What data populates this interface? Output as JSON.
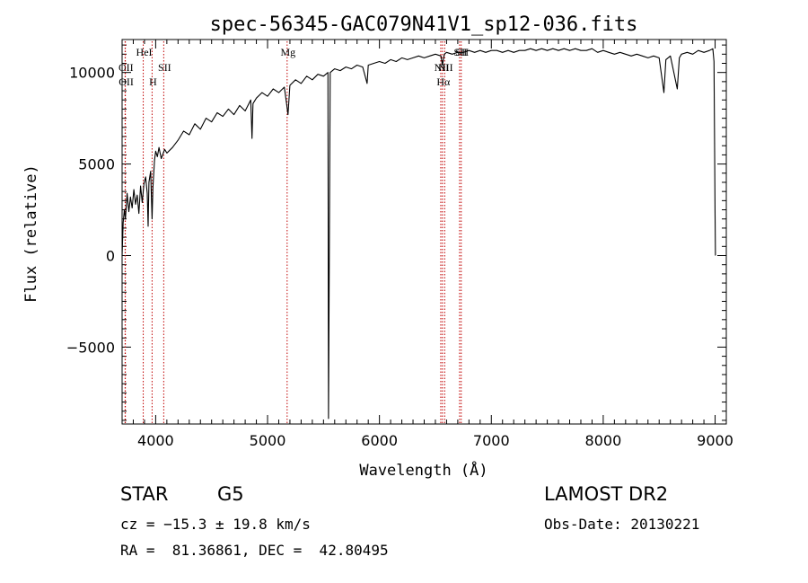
{
  "title": "spec-56345-GAC079N41V1_sp12-036.fits",
  "info": {
    "class_label": "STAR",
    "subclass": "G5",
    "survey": "LAMOST DR2",
    "redshift": "cz = −15.3 ± 19.8 km/s",
    "obs_date": "Obs-Date: 20130221",
    "coords": "RA =  81.36861, DEC =  42.80495"
  },
  "colors": {
    "spectrum": "#000000",
    "line_marker": "#c00000",
    "axes": "#000000"
  },
  "chart_data": {
    "type": "line",
    "title": "spec-56345-GAC079N41V1_sp12-036.fits",
    "xlabel": "Wavelength (Å)",
    "ylabel": "Flux (relative)",
    "xlim": [
      3700,
      9100
    ],
    "ylim": [
      -9200,
      11800
    ],
    "x_ticks": [
      4000,
      5000,
      6000,
      7000,
      8000,
      9000
    ],
    "x_tick_labels": [
      "4000",
      "5000",
      "6000",
      "7000",
      "8000",
      "9000"
    ],
    "y_ticks": [
      -5000,
      0,
      5000,
      10000
    ],
    "y_tick_labels": [
      "−5000",
      "0",
      "5000",
      "10000"
    ],
    "grid": false,
    "legend": "none",
    "series": [
      {
        "x": [
          3700,
          3710,
          3720,
          3730,
          3745,
          3760,
          3775,
          3790,
          3805,
          3820,
          3835,
          3850,
          3865,
          3880,
          3895,
          3910,
          3925,
          3933,
          3940,
          3955,
          3968,
          3975,
          3990,
          4000,
          4015,
          4030,
          4050,
          4080,
          4100,
          4150,
          4200,
          4250,
          4300,
          4350,
          4400,
          4450,
          4500,
          4550,
          4600,
          4650,
          4700,
          4750,
          4800,
          4850,
          4861,
          4870,
          4900,
          4950,
          5000,
          5050,
          5100,
          5150,
          5170,
          5183,
          5200,
          5250,
          5300,
          5350,
          5400,
          5450,
          5500,
          5540,
          5545,
          5560,
          5600,
          5650,
          5700,
          5750,
          5800,
          5850,
          5890,
          5900,
          5950,
          6000,
          6050,
          6100,
          6150,
          6200,
          6250,
          6300,
          6350,
          6400,
          6450,
          6500,
          6550,
          6563,
          6580,
          6600,
          6650,
          6700,
          6750,
          6800,
          6850,
          6900,
          6950,
          7000,
          7050,
          7100,
          7150,
          7200,
          7250,
          7300,
          7350,
          7400,
          7450,
          7500,
          7550,
          7600,
          7650,
          7700,
          7750,
          7800,
          7850,
          7900,
          7950,
          8000,
          8050,
          8100,
          8150,
          8200,
          8250,
          8300,
          8350,
          8400,
          8450,
          8500,
          8542,
          8560,
          8600,
          8662,
          8680,
          8700,
          8750,
          8800,
          8850,
          8900,
          8950,
          8980,
          8990,
          9000,
          9003
        ],
        "y": [
          0,
          1800,
          2500,
          2000,
          3400,
          2400,
          3200,
          2600,
          3600,
          2800,
          3300,
          2300,
          3800,
          2900,
          3900,
          4300,
          3400,
          1600,
          4000,
          4600,
          2000,
          3700,
          5200,
          5700,
          5400,
          5900,
          5300,
          5800,
          5600,
          5900,
          6300,
          6800,
          6600,
          7200,
          6900,
          7500,
          7300,
          7800,
          7600,
          8000,
          7700,
          8200,
          7900,
          8500,
          6400,
          8300,
          8600,
          8900,
          8700,
          9100,
          8900,
          9200,
          8300,
          7700,
          9300,
          9600,
          9400,
          9800,
          9600,
          9900,
          9800,
          10000,
          -8900,
          10000,
          10200,
          10100,
          10300,
          10200,
          10400,
          10300,
          9400,
          10400,
          10500,
          10600,
          10500,
          10700,
          10600,
          10800,
          10700,
          10800,
          10900,
          10800,
          10900,
          11000,
          10900,
          10400,
          11000,
          11100,
          11000,
          11100,
          11100,
          11200,
          11100,
          11200,
          11100,
          11200,
          11200,
          11100,
          11200,
          11100,
          11200,
          11200,
          11300,
          11200,
          11300,
          11200,
          11300,
          11200,
          11300,
          11200,
          11300,
          11200,
          11200,
          11300,
          11100,
          11200,
          11100,
          11000,
          11100,
          11000,
          10900,
          11000,
          10900,
          10800,
          10900,
          10800,
          8900,
          10700,
          10900,
          9100,
          10800,
          11000,
          11100,
          11000,
          11200,
          11100,
          11200,
          11300,
          10600,
          2200,
          0
        ]
      }
    ],
    "annotations": [
      {
        "label": "OII",
        "x": 3727
      },
      {
        "label": "OII",
        "x": 3729
      },
      {
        "label": "HeI",
        "x": 3889
      },
      {
        "label": "H",
        "x": 3968
      },
      {
        "label": "SII",
        "x": 4072
      },
      {
        "label": "Mg",
        "x": 5175
      },
      {
        "label": "NII",
        "x": 6548
      },
      {
        "label": "Hα",
        "x": 6563
      },
      {
        "label": "NII",
        "x": 6583
      },
      {
        "label": "SII",
        "x": 6716
      },
      {
        "label": "SII",
        "x": 6731
      }
    ]
  }
}
